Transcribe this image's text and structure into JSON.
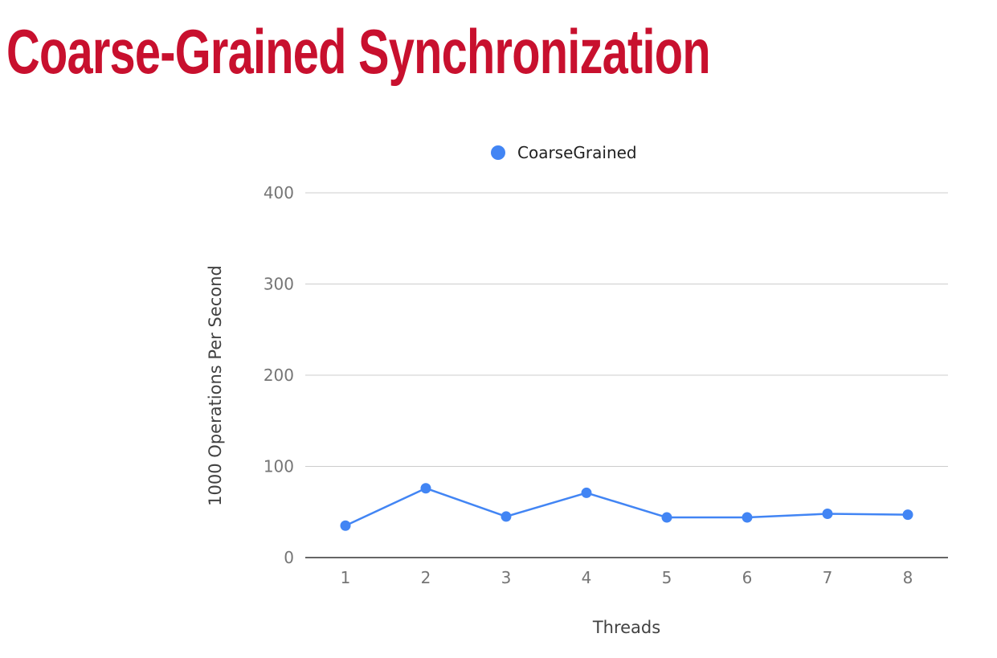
{
  "slide": {
    "title": "Coarse-Grained Synchronization"
  },
  "colors": {
    "title": "#c8102e",
    "series": "#4285f4",
    "grid": "#cccccc",
    "baseline": "#333333"
  },
  "chart_data": {
    "type": "line",
    "title": "",
    "xlabel": "Threads",
    "ylabel": "1000 Operations Per Second",
    "categories": [
      "1",
      "2",
      "3",
      "4",
      "5",
      "6",
      "7",
      "8"
    ],
    "series": [
      {
        "name": "CoarseGrained",
        "values": [
          35,
          76,
          45,
          71,
          44,
          44,
          48,
          47
        ]
      }
    ],
    "ylim": [
      0,
      400
    ],
    "yticks": [
      0,
      100,
      200,
      300,
      400
    ],
    "grid": true,
    "legend": "top-center"
  }
}
